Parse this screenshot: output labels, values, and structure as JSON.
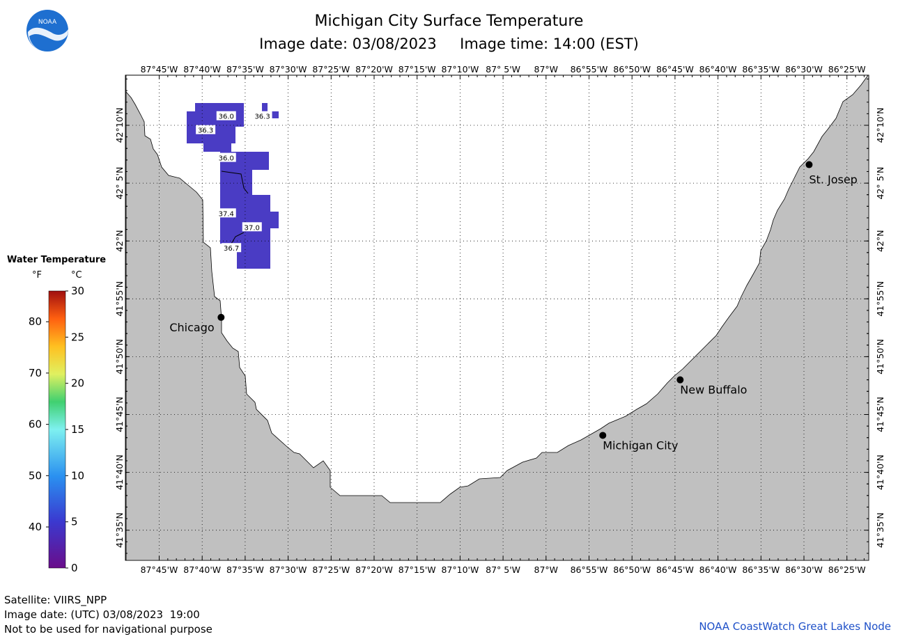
{
  "title": "Michigan City Surface Temperature",
  "subtitle": {
    "date_label": "Image date: 03/08/2023",
    "time_label": "Image time: 14:00 (EST)"
  },
  "logo_text": "NOAA",
  "legend": {
    "title": "Water Temperature",
    "unit_f": "°F",
    "unit_c": "°C",
    "f_ticks": [
      "80",
      "70",
      "60",
      "50",
      "40"
    ],
    "c_ticks": [
      "30",
      "25",
      "20",
      "15",
      "10",
      "5",
      "0"
    ]
  },
  "lon_labels": [
    "87°45'W",
    "87°40'W",
    "87°35'W",
    "87°30'W",
    "87°25'W",
    "87°20'W",
    "87°15'W",
    "87°10'W",
    "87° 5'W",
    "87°W",
    "86°55'W",
    "86°50'W",
    "86°45'W",
    "86°40'W",
    "86°35'W",
    "86°30'W",
    "86°25'W"
  ],
  "lat_labels": [
    "42°10'N",
    "42° 5'N",
    "42°N",
    "41°55'N",
    "41°50'N",
    "41°45'N",
    "41°40'N",
    "41°35'N"
  ],
  "cities": [
    {
      "name": "Chicago",
      "lon": -87.63,
      "lat": 41.89
    },
    {
      "name": "St. Josep",
      "lon": -86.49,
      "lat": 42.11
    },
    {
      "name": "New Buffalo",
      "lon": -86.74,
      "lat": 41.8
    },
    {
      "name": "Michigan City",
      "lon": -86.89,
      "lat": 41.72
    }
  ],
  "temperature_labels": [
    {
      "value": "36.0",
      "lon": -87.62,
      "lat": 42.18
    },
    {
      "value": "36.3",
      "lon": -87.55,
      "lat": 42.18
    },
    {
      "value": "36.3",
      "lon": -87.66,
      "lat": 42.16
    },
    {
      "value": "36.0",
      "lon": -87.62,
      "lat": 42.12
    },
    {
      "value": "37.4",
      "lon": -87.62,
      "lat": 42.04
    },
    {
      "value": "37.0",
      "lon": -87.57,
      "lat": 42.02
    },
    {
      "value": "36.7",
      "lon": -87.61,
      "lat": 41.99
    }
  ],
  "footer": {
    "satellite": "Satellite: VIIRS_NPP",
    "utc_date": "Image date: (UTC) 03/08/2023  19:00",
    "disclaimer": "Not to be used for navigational purpose",
    "credit": "NOAA CoastWatch Great Lakes Node"
  },
  "colors": {
    "land": "#c0c0c0",
    "water": "#ffffff",
    "sst": "#4a3cc4",
    "noaa_blue": "#1e6fd0",
    "credit": "#1e50c8"
  }
}
